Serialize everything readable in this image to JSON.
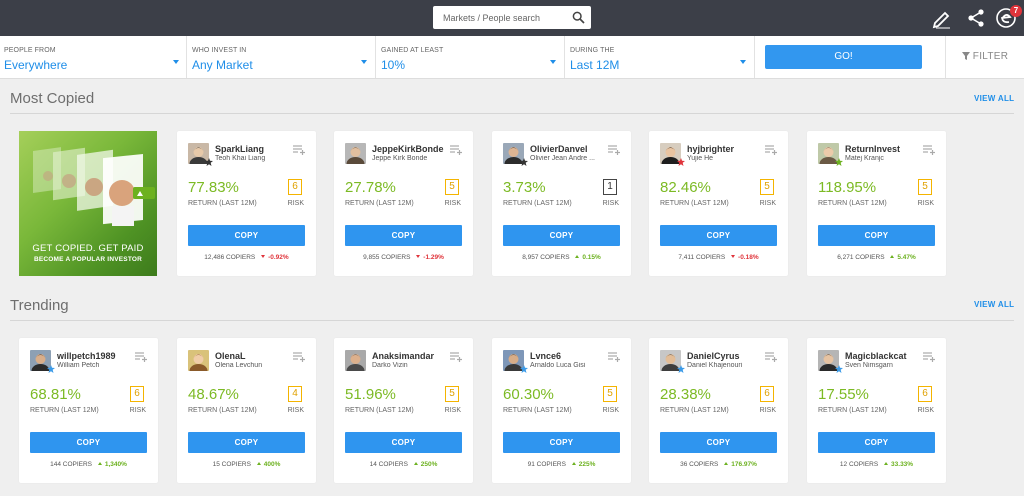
{
  "search": {
    "placeholder": "Markets / People search"
  },
  "header": {
    "notification_count": "7"
  },
  "filters": [
    {
      "label": "PEOPLE FROM",
      "value": "Everywhere"
    },
    {
      "label": "WHO INVEST IN",
      "value": "Any Market"
    },
    {
      "label": "GAINED AT LEAST",
      "value": "10%"
    },
    {
      "label": "DURING THE",
      "value": "Last 12M"
    }
  ],
  "go_label": "GO!",
  "filter_label": "FILTER",
  "promo": {
    "line1": "GET COPIED. GET PAID",
    "line2": "BECOME A POPULAR INVESTOR"
  },
  "sections": {
    "most_copied": {
      "title": "Most Copied",
      "view_all": "VIEW ALL"
    },
    "trending": {
      "title": "Trending",
      "view_all": "VIEW ALL"
    }
  },
  "labels": {
    "return": "RETURN (LAST 12M)",
    "risk": "RISK",
    "copy": "COPY",
    "copiers_suffix": "COPIERS"
  },
  "most_copied": [
    {
      "username": "SparkLiang",
      "realname": "Teoh Khai Liang",
      "return": "77.83%",
      "risk": "6",
      "copiers": "12,486",
      "change": "-0.92%",
      "direction": "down",
      "star": "dark"
    },
    {
      "username": "JeppeKirkBonde",
      "realname": "Jeppe Kirk Bonde",
      "return": "27.78%",
      "risk": "5",
      "copiers": "9,855",
      "change": "-1.29%",
      "direction": "down",
      "star": "none"
    },
    {
      "username": "OlivierDanvel",
      "realname": "Olivier Jean Andre ...",
      "return": "3.73%",
      "risk": "1",
      "copiers": "8,957",
      "change": "0.15%",
      "direction": "up",
      "star": "dark"
    },
    {
      "username": "hyjbrighter",
      "realname": "Yujie He",
      "return": "82.46%",
      "risk": "5",
      "copiers": "7,411",
      "change": "-0.18%",
      "direction": "down",
      "star": "red"
    },
    {
      "username": "ReturnInvest",
      "realname": "Matej Kranjc",
      "return": "118.95%",
      "risk": "5",
      "copiers": "6,271",
      "change": "5.47%",
      "direction": "up",
      "star": "green"
    }
  ],
  "trending": [
    {
      "username": "willpetch1989",
      "realname": "William Petch",
      "return": "68.81%",
      "risk": "6",
      "copiers": "144",
      "change": "1,340%",
      "direction": "up",
      "star": "blue"
    },
    {
      "username": "OlenaL",
      "realname": "Olena Levchun",
      "return": "48.67%",
      "risk": "4",
      "copiers": "15",
      "change": "400%",
      "direction": "up",
      "star": "none"
    },
    {
      "username": "Anaksimandar",
      "realname": "Darko Vizin",
      "return": "51.96%",
      "risk": "5",
      "copiers": "14",
      "change": "250%",
      "direction": "up",
      "star": "none"
    },
    {
      "username": "Lvnce6",
      "realname": "Arnaldo Luca Gisi",
      "return": "60.30%",
      "risk": "5",
      "copiers": "91",
      "change": "225%",
      "direction": "up",
      "star": "blue"
    },
    {
      "username": "DanielCyrus",
      "realname": "Daniel Khajenouri",
      "return": "28.38%",
      "risk": "6",
      "copiers": "36",
      "change": "176.97%",
      "direction": "up",
      "star": "blue"
    },
    {
      "username": "Magicblackcat",
      "realname": "Sven Nimsgarn",
      "return": "17.55%",
      "risk": "6",
      "copiers": "12",
      "change": "33.33%",
      "direction": "up",
      "star": "blue"
    }
  ]
}
